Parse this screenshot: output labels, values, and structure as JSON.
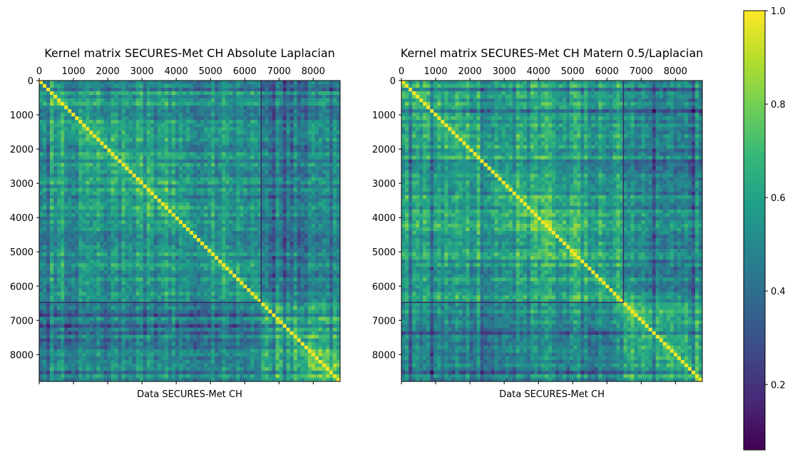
{
  "chart_data": [
    {
      "type": "heatmap",
      "title": "Kernel matrix SECURES-Met CH Absolute Laplacian",
      "xlabel": "Data SECURES-Met CH",
      "ylabel": "",
      "n": 8784,
      "xlim": [
        0,
        8784
      ],
      "ylim": [
        8784,
        0
      ],
      "x_ticks": [
        "0",
        "1000",
        "2000",
        "3000",
        "4000",
        "5000",
        "6000",
        "7000",
        "8000"
      ],
      "y_ticks": [
        "0",
        "1000",
        "2000",
        "3000",
        "4000",
        "5000",
        "6000",
        "7000",
        "8000"
      ],
      "x_tick_position": "top",
      "block_boundary": 6480,
      "colormap": "viridis"
    },
    {
      "type": "heatmap",
      "title": "Kernel matrix SECURES-Met CH Matern 0.5/Laplacian",
      "xlabel": "Data SECURES-Met CH",
      "ylabel": "",
      "n": 8784,
      "xlim": [
        0,
        8784
      ],
      "ylim": [
        8784,
        0
      ],
      "x_ticks": [
        "0",
        "1000",
        "2000",
        "3000",
        "4000",
        "5000",
        "6000",
        "7000",
        "8000"
      ],
      "y_ticks": [
        "0",
        "1000",
        "2000",
        "3000",
        "4000",
        "5000",
        "6000",
        "7000",
        "8000"
      ],
      "x_tick_position": "top",
      "block_boundary": 6480,
      "colormap": "viridis"
    }
  ],
  "colorbar": {
    "range": [
      0.06,
      1.0
    ],
    "ticks": [
      "0.2",
      "0.4",
      "0.6",
      "0.8",
      "1.0"
    ],
    "tick_values": [
      0.2,
      0.4,
      0.6,
      0.8,
      1.0
    ],
    "colormap": "viridis"
  },
  "colors": {
    "viridis_stops": [
      "#440154",
      "#482878",
      "#3e4989",
      "#31688e",
      "#26828e",
      "#1f9e89",
      "#35b779",
      "#6ece58",
      "#b5de2b",
      "#fde725"
    ]
  }
}
